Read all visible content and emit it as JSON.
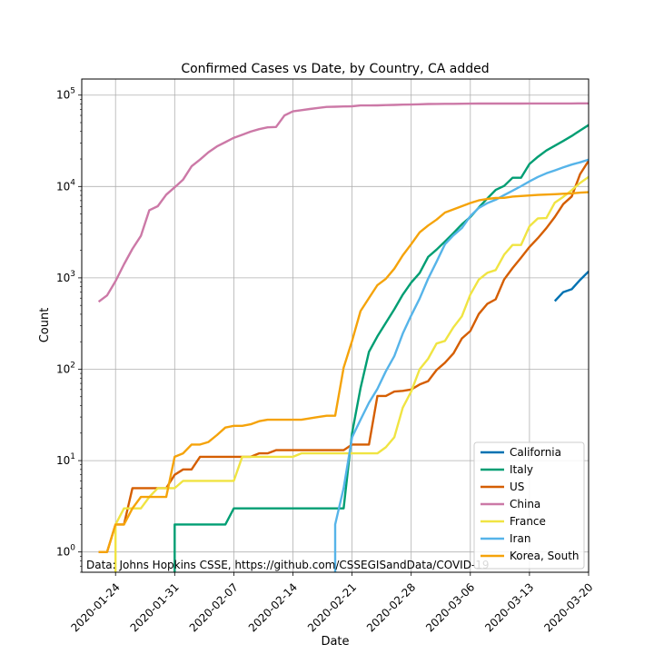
{
  "chart_data": {
    "type": "line",
    "title": "Confirmed Cases vs Date, by Country, CA added",
    "xlabel": "Date",
    "ylabel": "Count",
    "yscale": "log",
    "xlim": [
      "2020-01-20",
      "2020-03-20"
    ],
    "ylim": [
      0.6,
      150000
    ],
    "xticks": [
      "2020-01-24",
      "2020-01-31",
      "2020-02-07",
      "2020-02-14",
      "2020-02-21",
      "2020-02-28",
      "2020-03-06",
      "2020-03-13",
      "2020-03-20"
    ],
    "yticks": [
      {
        "value": 1,
        "base": "10",
        "exp": "0"
      },
      {
        "value": 10,
        "base": "10",
        "exp": "1"
      },
      {
        "value": 100,
        "base": "10",
        "exp": "2"
      },
      {
        "value": 1000,
        "base": "10",
        "exp": "3"
      },
      {
        "value": 10000,
        "base": "10",
        "exp": "4"
      },
      {
        "value": 100000,
        "base": "10",
        "exp": "5"
      }
    ],
    "grid": true,
    "legend_position": "lower-right",
    "annotation": "Data: Johns Hopkins CSSE, https://github.com/CSSEGISandData/COVID-19",
    "series": [
      {
        "name": "California",
        "color": "#0072b2",
        "points": [
          [
            "2020-03-16",
            557
          ],
          [
            "2020-03-17",
            698
          ],
          [
            "2020-03-18",
            751
          ],
          [
            "2020-03-19",
            952
          ],
          [
            "2020-03-20",
            1177
          ]
        ]
      },
      {
        "name": "Italy",
        "color": "#009e73",
        "points": [
          [
            "2020-01-31",
            0.4
          ],
          [
            "2020-01-31",
            2
          ],
          [
            "2020-02-06",
            2
          ],
          [
            "2020-02-07",
            3
          ],
          [
            "2020-02-20",
            3
          ],
          [
            "2020-02-21",
            20
          ],
          [
            "2020-02-22",
            62
          ],
          [
            "2020-02-23",
            155
          ],
          [
            "2020-02-24",
            229
          ],
          [
            "2020-02-25",
            322
          ],
          [
            "2020-02-26",
            453
          ],
          [
            "2020-02-27",
            655
          ],
          [
            "2020-02-28",
            888
          ],
          [
            "2020-02-29",
            1128
          ],
          [
            "2020-03-01",
            1694
          ],
          [
            "2020-03-02",
            2036
          ],
          [
            "2020-03-03",
            2502
          ],
          [
            "2020-03-04",
            3089
          ],
          [
            "2020-03-05",
            3858
          ],
          [
            "2020-03-06",
            4636
          ],
          [
            "2020-03-07",
            5883
          ],
          [
            "2020-03-08",
            7375
          ],
          [
            "2020-03-09",
            9172
          ],
          [
            "2020-03-10",
            10149
          ],
          [
            "2020-03-11",
            12462
          ],
          [
            "2020-03-12",
            12462
          ],
          [
            "2020-03-13",
            17660
          ],
          [
            "2020-03-14",
            21157
          ],
          [
            "2020-03-15",
            24747
          ],
          [
            "2020-03-16",
            27980
          ],
          [
            "2020-03-17",
            31506
          ],
          [
            "2020-03-18",
            35713
          ],
          [
            "2020-03-19",
            41035
          ],
          [
            "2020-03-20",
            47021
          ]
        ]
      },
      {
        "name": "US",
        "color": "#d55e00",
        "points": [
          [
            "2020-01-22",
            1
          ],
          [
            "2020-01-23",
            1
          ],
          [
            "2020-01-24",
            2
          ],
          [
            "2020-01-25",
            2
          ],
          [
            "2020-01-26",
            5
          ],
          [
            "2020-01-30",
            5
          ],
          [
            "2020-01-31",
            7
          ],
          [
            "2020-02-01",
            8
          ],
          [
            "2020-02-02",
            8
          ],
          [
            "2020-02-03",
            11
          ],
          [
            "2020-02-08",
            11
          ],
          [
            "2020-02-09",
            11
          ],
          [
            "2020-02-10",
            12
          ],
          [
            "2020-02-11",
            12
          ],
          [
            "2020-02-12",
            13
          ],
          [
            "2020-02-20",
            13
          ],
          [
            "2020-02-21",
            15
          ],
          [
            "2020-02-23",
            15
          ],
          [
            "2020-02-24",
            51
          ],
          [
            "2020-02-25",
            51
          ],
          [
            "2020-02-26",
            57
          ],
          [
            "2020-02-27",
            58
          ],
          [
            "2020-02-28",
            60
          ],
          [
            "2020-02-29",
            68
          ],
          [
            "2020-03-01",
            74
          ],
          [
            "2020-03-02",
            98
          ],
          [
            "2020-03-03",
            118
          ],
          [
            "2020-03-04",
            149
          ],
          [
            "2020-03-05",
            217
          ],
          [
            "2020-03-06",
            262
          ],
          [
            "2020-03-07",
            402
          ],
          [
            "2020-03-08",
            518
          ],
          [
            "2020-03-09",
            583
          ],
          [
            "2020-03-10",
            959
          ],
          [
            "2020-03-11",
            1281
          ],
          [
            "2020-03-12",
            1663
          ],
          [
            "2020-03-13",
            2179
          ],
          [
            "2020-03-14",
            2727
          ],
          [
            "2020-03-15",
            3499
          ],
          [
            "2020-03-16",
            4632
          ],
          [
            "2020-03-17",
            6421
          ],
          [
            "2020-03-18",
            7783
          ],
          [
            "2020-03-19",
            13677
          ],
          [
            "2020-03-20",
            19100
          ]
        ]
      },
      {
        "name": "China",
        "color": "#cc79a7",
        "points": [
          [
            "2020-01-22",
            548
          ],
          [
            "2020-01-23",
            643
          ],
          [
            "2020-01-24",
            920
          ],
          [
            "2020-01-25",
            1406
          ],
          [
            "2020-01-26",
            2075
          ],
          [
            "2020-01-27",
            2877
          ],
          [
            "2020-01-28",
            5509
          ],
          [
            "2020-01-29",
            6087
          ],
          [
            "2020-01-30",
            8141
          ],
          [
            "2020-01-31",
            9802
          ],
          [
            "2020-02-01",
            11891
          ],
          [
            "2020-02-02",
            16630
          ],
          [
            "2020-02-03",
            19716
          ],
          [
            "2020-02-04",
            23707
          ],
          [
            "2020-02-05",
            27440
          ],
          [
            "2020-02-06",
            30587
          ],
          [
            "2020-02-07",
            34110
          ],
          [
            "2020-02-08",
            36814
          ],
          [
            "2020-02-09",
            39829
          ],
          [
            "2020-02-10",
            42354
          ],
          [
            "2020-02-11",
            44386
          ],
          [
            "2020-02-12",
            44759
          ],
          [
            "2020-02-13",
            59895
          ],
          [
            "2020-02-14",
            66358
          ],
          [
            "2020-02-15",
            68413
          ],
          [
            "2020-02-16",
            70513
          ],
          [
            "2020-02-17",
            72434
          ],
          [
            "2020-02-18",
            74211
          ],
          [
            "2020-02-19",
            74619
          ],
          [
            "2020-02-20",
            75077
          ],
          [
            "2020-02-21",
            75550
          ],
          [
            "2020-02-22",
            77001
          ],
          [
            "2020-02-23",
            77022
          ],
          [
            "2020-02-24",
            77241
          ],
          [
            "2020-02-25",
            77754
          ],
          [
            "2020-02-26",
            78166
          ],
          [
            "2020-02-27",
            78600
          ],
          [
            "2020-02-28",
            78928
          ],
          [
            "2020-02-29",
            79356
          ],
          [
            "2020-03-01",
            79932
          ],
          [
            "2020-03-02",
            80136
          ],
          [
            "2020-03-03",
            80261
          ],
          [
            "2020-03-04",
            80386
          ],
          [
            "2020-03-05",
            80537
          ],
          [
            "2020-03-06",
            80690
          ],
          [
            "2020-03-07",
            80770
          ],
          [
            "2020-03-08",
            80823
          ],
          [
            "2020-03-09",
            80860
          ],
          [
            "2020-03-10",
            80887
          ],
          [
            "2020-03-11",
            80921
          ],
          [
            "2020-03-12",
            80932
          ],
          [
            "2020-03-13",
            80945
          ],
          [
            "2020-03-14",
            80977
          ],
          [
            "2020-03-15",
            81003
          ],
          [
            "2020-03-16",
            81033
          ],
          [
            "2020-03-17",
            81058
          ],
          [
            "2020-03-18",
            81102
          ],
          [
            "2020-03-19",
            81156
          ],
          [
            "2020-03-20",
            81250
          ]
        ]
      },
      {
        "name": "France",
        "color": "#f0e442",
        "points": [
          [
            "2020-01-24",
            0.4
          ],
          [
            "2020-01-24",
            2
          ],
          [
            "2020-01-25",
            3
          ],
          [
            "2020-01-26",
            3
          ],
          [
            "2020-01-27",
            3
          ],
          [
            "2020-01-28",
            4
          ],
          [
            "2020-01-29",
            5
          ],
          [
            "2020-01-31",
            5
          ],
          [
            "2020-02-01",
            6
          ],
          [
            "2020-02-07",
            6
          ],
          [
            "2020-02-08",
            11
          ],
          [
            "2020-02-14",
            11
          ],
          [
            "2020-02-15",
            12
          ],
          [
            "2020-02-24",
            12
          ],
          [
            "2020-02-25",
            14
          ],
          [
            "2020-02-26",
            18
          ],
          [
            "2020-02-27",
            38
          ],
          [
            "2020-02-28",
            57
          ],
          [
            "2020-02-29",
            100
          ],
          [
            "2020-03-01",
            130
          ],
          [
            "2020-03-02",
            191
          ],
          [
            "2020-03-03",
            204
          ],
          [
            "2020-03-04",
            288
          ],
          [
            "2020-03-05",
            380
          ],
          [
            "2020-03-06",
            656
          ],
          [
            "2020-03-07",
            957
          ],
          [
            "2020-03-08",
            1134
          ],
          [
            "2020-03-09",
            1217
          ],
          [
            "2020-03-10",
            1792
          ],
          [
            "2020-03-11",
            2289
          ],
          [
            "2020-03-12",
            2289
          ],
          [
            "2020-03-13",
            3672
          ],
          [
            "2020-03-14",
            4480
          ],
          [
            "2020-03-15",
            4513
          ],
          [
            "2020-03-16",
            6650
          ],
          [
            "2020-03-17",
            7699
          ],
          [
            "2020-03-18",
            9105
          ],
          [
            "2020-03-19",
            10947
          ],
          [
            "2020-03-20",
            12726
          ]
        ]
      },
      {
        "name": "Iran",
        "color": "#56b4e9",
        "points": [
          [
            "2020-02-19",
            0.4
          ],
          [
            "2020-02-19",
            2
          ],
          [
            "2020-02-20",
            5
          ],
          [
            "2020-02-21",
            18
          ],
          [
            "2020-02-22",
            28
          ],
          [
            "2020-02-23",
            43
          ],
          [
            "2020-02-24",
            61
          ],
          [
            "2020-02-25",
            95
          ],
          [
            "2020-02-26",
            139
          ],
          [
            "2020-02-27",
            245
          ],
          [
            "2020-02-28",
            388
          ],
          [
            "2020-02-29",
            593
          ],
          [
            "2020-03-01",
            978
          ],
          [
            "2020-03-02",
            1501
          ],
          [
            "2020-03-03",
            2336
          ],
          [
            "2020-03-04",
            2922
          ],
          [
            "2020-03-05",
            3513
          ],
          [
            "2020-03-06",
            4747
          ],
          [
            "2020-03-07",
            5823
          ],
          [
            "2020-03-08",
            6566
          ],
          [
            "2020-03-09",
            7161
          ],
          [
            "2020-03-10",
            8042
          ],
          [
            "2020-03-11",
            9000
          ],
          [
            "2020-03-12",
            10075
          ],
          [
            "2020-03-13",
            11364
          ],
          [
            "2020-03-14",
            12729
          ],
          [
            "2020-03-15",
            13938
          ],
          [
            "2020-03-16",
            14991
          ],
          [
            "2020-03-17",
            16169
          ],
          [
            "2020-03-18",
            17361
          ],
          [
            "2020-03-19",
            18407
          ],
          [
            "2020-03-20",
            19644
          ]
        ]
      },
      {
        "name": "Korea, South",
        "color": "#f5a30a",
        "points": [
          [
            "2020-01-22",
            1
          ],
          [
            "2020-01-23",
            1
          ],
          [
            "2020-01-24",
            2
          ],
          [
            "2020-01-25",
            2
          ],
          [
            "2020-01-26",
            3
          ],
          [
            "2020-01-27",
            4
          ],
          [
            "2020-01-30",
            4
          ],
          [
            "2020-01-31",
            11
          ],
          [
            "2020-02-01",
            12
          ],
          [
            "2020-02-02",
            15
          ],
          [
            "2020-02-03",
            15
          ],
          [
            "2020-02-04",
            16
          ],
          [
            "2020-02-05",
            19
          ],
          [
            "2020-02-06",
            23
          ],
          [
            "2020-02-07",
            24
          ],
          [
            "2020-02-08",
            24
          ],
          [
            "2020-02-09",
            25
          ],
          [
            "2020-02-10",
            27
          ],
          [
            "2020-02-11",
            28
          ],
          [
            "2020-02-15",
            28
          ],
          [
            "2020-02-16",
            29
          ],
          [
            "2020-02-17",
            30
          ],
          [
            "2020-02-18",
            31
          ],
          [
            "2020-02-19",
            31
          ],
          [
            "2020-02-20",
            104
          ],
          [
            "2020-02-21",
            204
          ],
          [
            "2020-02-22",
            433
          ],
          [
            "2020-02-23",
            602
          ],
          [
            "2020-02-24",
            833
          ],
          [
            "2020-02-25",
            977
          ],
          [
            "2020-02-26",
            1261
          ],
          [
            "2020-02-27",
            1766
          ],
          [
            "2020-02-28",
            2337
          ],
          [
            "2020-02-29",
            3150
          ],
          [
            "2020-03-01",
            3736
          ],
          [
            "2020-03-02",
            4335
          ],
          [
            "2020-03-03",
            5186
          ],
          [
            "2020-03-04",
            5621
          ],
          [
            "2020-03-05",
            6088
          ],
          [
            "2020-03-06",
            6593
          ],
          [
            "2020-03-07",
            7041
          ],
          [
            "2020-03-08",
            7314
          ],
          [
            "2020-03-09",
            7478
          ],
          [
            "2020-03-10",
            7513
          ],
          [
            "2020-03-11",
            7755
          ],
          [
            "2020-03-12",
            7869
          ],
          [
            "2020-03-13",
            7979
          ],
          [
            "2020-03-14",
            8086
          ],
          [
            "2020-03-15",
            8162
          ],
          [
            "2020-03-16",
            8236
          ],
          [
            "2020-03-17",
            8320
          ],
          [
            "2020-03-18",
            8413
          ],
          [
            "2020-03-19",
            8565
          ],
          [
            "2020-03-20",
            8652
          ]
        ]
      }
    ]
  }
}
